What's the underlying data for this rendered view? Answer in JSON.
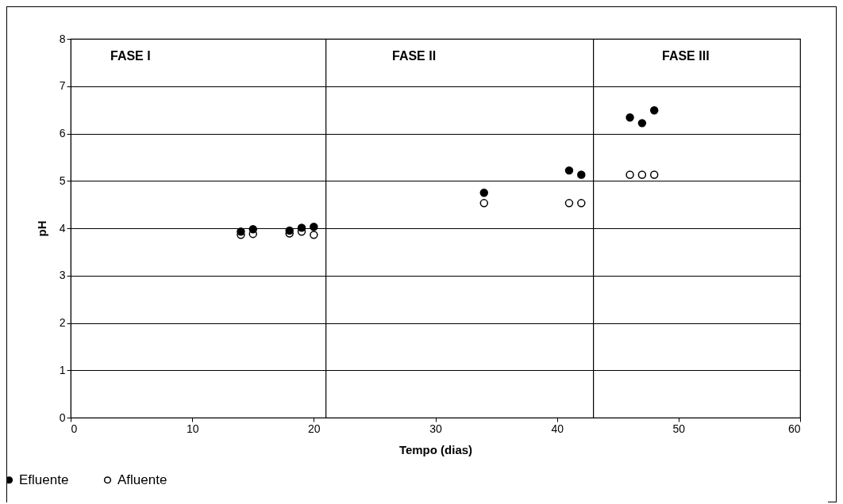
{
  "chart_data": {
    "type": "scatter",
    "xlabel": "Tempo (dias)",
    "ylabel": "pH",
    "xlim": [
      0,
      60
    ],
    "xticks": [
      0,
      10,
      20,
      30,
      40,
      50,
      60
    ],
    "ylim": [
      0,
      8
    ],
    "yticks": [
      0,
      1,
      2,
      3,
      4,
      5,
      6,
      7,
      8
    ],
    "x": [
      14,
      15,
      18,
      19,
      20,
      34,
      41,
      42,
      46,
      47,
      48
    ],
    "series": [
      {
        "name": "Efluente",
        "color": "#000000",
        "values": [
          3.93,
          3.98,
          3.95,
          4.01,
          4.03,
          4.75,
          5.22,
          5.13,
          6.34,
          6.22,
          6.49
        ]
      },
      {
        "name": "Afluente",
        "color": "#000000",
        "values": [
          3.86,
          3.88,
          3.89,
          3.93,
          3.86,
          4.53,
          4.53,
          4.53,
          5.13,
          5.13,
          5.13
        ]
      }
    ],
    "ref_lines": [
      {
        "axis": "x",
        "value": 21,
        "color": "#000000"
      },
      {
        "axis": "x",
        "value": 43,
        "color": "#000000"
      }
    ],
    "annotations": [
      "FASE I",
      "FASE II",
      "FASE III"
    ],
    "grid": "y",
    "marker": "circle",
    "legend": "bottom left"
  }
}
